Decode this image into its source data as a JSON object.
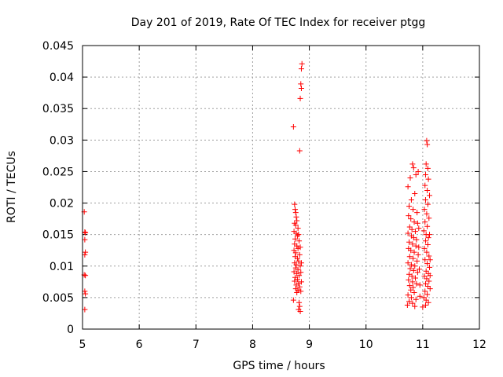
{
  "chart_data": {
    "type": "scatter",
    "title": "Day 201 of 2019, Rate Of TEC Index for receiver ptgg",
    "xlabel": "GPS time / hours",
    "ylabel": "ROTI / TECUs",
    "xlim": [
      5,
      12
    ],
    "ylim": [
      0,
      0.045
    ],
    "xticks": [
      5,
      6,
      7,
      8,
      9,
      10,
      11,
      12
    ],
    "yticks": [
      0,
      0.005,
      0.01,
      0.015,
      0.02,
      0.025,
      0.03,
      0.035,
      0.04,
      0.045
    ],
    "xtick_labels": [
      "5",
      "6",
      "7",
      "8",
      "9",
      "10",
      "11",
      "12"
    ],
    "ytick_labels": [
      "0",
      "0.005",
      "0.01",
      "0.015",
      "0.02",
      "0.025",
      "0.03",
      "0.035",
      "0.04",
      "0.045"
    ],
    "grid": true,
    "marker": "+",
    "color": "#ff0000",
    "series": [
      {
        "name": "ROTI",
        "points": [
          [
            5.03,
            0.0186
          ],
          [
            5.04,
            0.0154
          ],
          [
            5.05,
            0.0153
          ],
          [
            5.04,
            0.0142
          ],
          [
            5.05,
            0.0122
          ],
          [
            5.04,
            0.0118
          ],
          [
            5.03,
            0.0086
          ],
          [
            5.05,
            0.0085
          ],
          [
            5.04,
            0.006
          ],
          [
            5.05,
            0.0056
          ],
          [
            5.04,
            0.0031
          ],
          [
            8.72,
            0.0321
          ],
          [
            8.83,
            0.0283
          ],
          [
            8.84,
            0.0366
          ],
          [
            8.86,
            0.0382
          ],
          [
            8.85,
            0.0389
          ],
          [
            8.86,
            0.0413
          ],
          [
            8.87,
            0.0421
          ],
          [
            8.74,
            0.0198
          ],
          [
            8.75,
            0.019
          ],
          [
            8.76,
            0.0185
          ],
          [
            8.77,
            0.0178
          ],
          [
            8.78,
            0.0172
          ],
          [
            8.74,
            0.0168
          ],
          [
            8.76,
            0.0165
          ],
          [
            8.8,
            0.016
          ],
          [
            8.73,
            0.0155
          ],
          [
            8.77,
            0.0152
          ],
          [
            8.79,
            0.0148
          ],
          [
            8.75,
            0.0143
          ],
          [
            8.82,
            0.014
          ],
          [
            8.74,
            0.0135
          ],
          [
            8.78,
            0.0132
          ],
          [
            8.8,
            0.0128
          ],
          [
            8.73,
            0.0125
          ],
          [
            8.76,
            0.0121
          ],
          [
            8.83,
            0.0118
          ],
          [
            8.75,
            0.0115
          ],
          [
            8.79,
            0.0112
          ],
          [
            8.81,
            0.0108
          ],
          [
            8.74,
            0.0105
          ],
          [
            8.77,
            0.0102
          ],
          [
            8.84,
            0.01
          ],
          [
            8.76,
            0.0097
          ],
          [
            8.8,
            0.0094
          ],
          [
            8.73,
            0.0091
          ],
          [
            8.78,
            0.0088
          ],
          [
            8.82,
            0.0085
          ],
          [
            8.75,
            0.0082
          ],
          [
            8.79,
            0.0079
          ],
          [
            8.74,
            0.0076
          ],
          [
            8.81,
            0.0073
          ],
          [
            8.77,
            0.007
          ],
          [
            8.83,
            0.0067
          ],
          [
            8.76,
            0.0064
          ],
          [
            8.8,
            0.0062
          ],
          [
            8.85,
            0.006
          ],
          [
            8.78,
            0.0058
          ],
          [
            8.72,
            0.0046
          ],
          [
            8.82,
            0.0042
          ],
          [
            8.83,
            0.0036
          ],
          [
            8.81,
            0.0031
          ],
          [
            8.84,
            0.0028
          ],
          [
            8.86,
            0.0105
          ],
          [
            8.85,
            0.009
          ],
          [
            8.86,
            0.0075
          ],
          [
            8.84,
            0.013
          ],
          [
            8.81,
            0.015
          ],
          [
            10.74,
            0.0226
          ],
          [
            10.78,
            0.024
          ],
          [
            10.82,
            0.0262
          ],
          [
            10.84,
            0.0256
          ],
          [
            10.88,
            0.0245
          ],
          [
            10.92,
            0.025
          ],
          [
            10.86,
            0.0215
          ],
          [
            10.8,
            0.0205
          ],
          [
            10.76,
            0.0195
          ],
          [
            10.83,
            0.019
          ],
          [
            10.9,
            0.0185
          ],
          [
            10.75,
            0.018
          ],
          [
            10.79,
            0.0175
          ],
          [
            10.85,
            0.017
          ],
          [
            10.91,
            0.0168
          ],
          [
            10.77,
            0.0162
          ],
          [
            10.81,
            0.0158
          ],
          [
            10.87,
            0.0155
          ],
          [
            10.74,
            0.0152
          ],
          [
            10.8,
            0.0148
          ],
          [
            10.84,
            0.0145
          ],
          [
            10.89,
            0.0142
          ],
          [
            10.76,
            0.0138
          ],
          [
            10.82,
            0.0135
          ],
          [
            10.88,
            0.0132
          ],
          [
            10.75,
            0.0128
          ],
          [
            10.79,
            0.0125
          ],
          [
            10.85,
            0.0122
          ],
          [
            10.92,
            0.0118
          ],
          [
            10.77,
            0.0115
          ],
          [
            10.83,
            0.0112
          ],
          [
            10.9,
            0.0108
          ],
          [
            10.74,
            0.0105
          ],
          [
            10.8,
            0.0102
          ],
          [
            10.86,
            0.01
          ],
          [
            10.78,
            0.0096
          ],
          [
            10.84,
            0.0093
          ],
          [
            10.91,
            0.009
          ],
          [
            10.76,
            0.0087
          ],
          [
            10.81,
            0.0084
          ],
          [
            10.87,
            0.0081
          ],
          [
            10.75,
            0.0078
          ],
          [
            10.82,
            0.0075
          ],
          [
            10.89,
            0.0072
          ],
          [
            10.77,
            0.0069
          ],
          [
            10.83,
            0.0066
          ],
          [
            10.79,
            0.0062
          ],
          [
            10.85,
            0.0058
          ],
          [
            10.74,
            0.0054
          ],
          [
            10.8,
            0.005
          ],
          [
            10.88,
            0.0047
          ],
          [
            10.76,
            0.0044
          ],
          [
            10.82,
            0.0041
          ],
          [
            10.73,
            0.0038
          ],
          [
            10.86,
            0.0036
          ],
          [
            10.95,
            0.0052
          ],
          [
            10.93,
            0.013
          ],
          [
            10.94,
            0.0095
          ],
          [
            10.93,
            0.016
          ],
          [
            10.95,
            0.007
          ],
          [
            11.07,
            0.0299
          ],
          [
            11.08,
            0.0293
          ],
          [
            11.06,
            0.0262
          ],
          [
            11.09,
            0.0255
          ],
          [
            11.05,
            0.0245
          ],
          [
            11.1,
            0.0238
          ],
          [
            11.04,
            0.0228
          ],
          [
            11.08,
            0.022
          ],
          [
            11.12,
            0.0212
          ],
          [
            11.05,
            0.0205
          ],
          [
            11.09,
            0.0198
          ],
          [
            11.03,
            0.019
          ],
          [
            11.07,
            0.0183
          ],
          [
            11.11,
            0.0176
          ],
          [
            11.04,
            0.017
          ],
          [
            11.08,
            0.0163
          ],
          [
            11.02,
            0.0156
          ],
          [
            11.06,
            0.015
          ],
          [
            11.1,
            0.0145
          ],
          [
            11.05,
            0.014
          ],
          [
            11.09,
            0.0134
          ],
          [
            11.03,
            0.0128
          ],
          [
            11.07,
            0.0122
          ],
          [
            11.11,
            0.0116
          ],
          [
            11.04,
            0.011
          ],
          [
            11.08,
            0.0104
          ],
          [
            11.12,
            0.0098
          ],
          [
            11.06,
            0.0092
          ],
          [
            11.1,
            0.0088
          ],
          [
            11.03,
            0.0084
          ],
          [
            11.07,
            0.008
          ],
          [
            11.11,
            0.0076
          ],
          [
            11.05,
            0.0072
          ],
          [
            11.09,
            0.0068
          ],
          [
            11.13,
            0.0064
          ],
          [
            11.04,
            0.006
          ],
          [
            11.08,
            0.0055
          ],
          [
            11.02,
            0.005
          ],
          [
            11.06,
            0.0046
          ],
          [
            11.1,
            0.0042
          ],
          [
            11.05,
            0.0038
          ],
          [
            11.0,
            0.0035
          ],
          [
            11.13,
            0.0085
          ],
          [
            11.12,
            0.015
          ],
          [
            11.13,
            0.011
          ]
        ]
      }
    ]
  }
}
